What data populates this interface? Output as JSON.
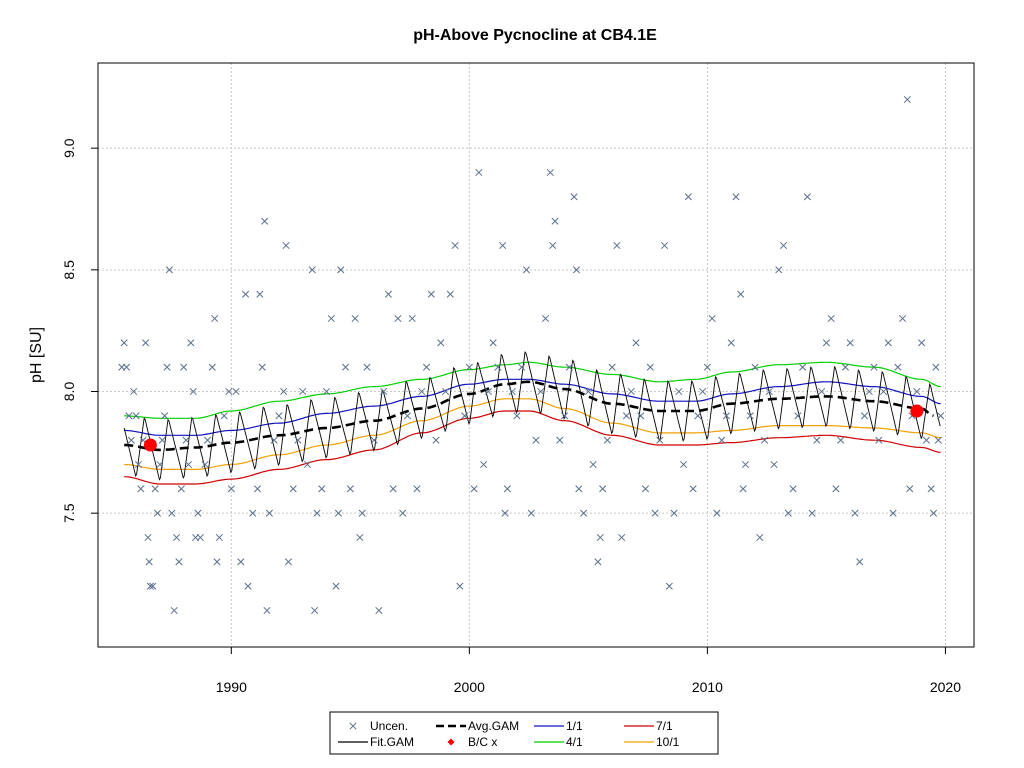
{
  "chart_data": {
    "type": "scatter",
    "title": "pH-Above Pycnocline at CB4.1E",
    "xlabel": "",
    "ylabel": "pH [SU]",
    "xlim": [
      1984.4,
      2021.2
    ],
    "ylim": [
      6.95,
      9.35
    ],
    "x_ticks": [
      1990,
      2000,
      2010,
      2020
    ],
    "x_tick_labels": [
      "1990",
      "2000",
      "2010",
      "2020"
    ],
    "y_ticks": [
      7.5,
      8.0,
      8.5,
      9.0
    ],
    "y_tick_labels": [
      "7.5",
      "8.0",
      "8.5",
      "9.0"
    ],
    "grid": true,
    "legend_position": "bottom-center",
    "colors": {
      "uncen": "#5a6f8c",
      "fit_gam": "#000000",
      "avg_gam": "#000000",
      "bc": "#ff0000",
      "s1_1": "#1010c0",
      "s4_1": "#00d000",
      "s7_1": "#d00000",
      "s10_1": "#f0a000"
    },
    "legend": [
      {
        "key": "uncen",
        "label": "Uncen."
      },
      {
        "key": "fit_gam",
        "label": "Fit.GAM"
      },
      {
        "key": "avg_gam",
        "label": "Avg.GAM"
      },
      {
        "key": "bc",
        "label": "B/C x"
      },
      {
        "key": "s1_1",
        "label": "1/1"
      },
      {
        "key": "s4_1",
        "label": "4/1"
      },
      {
        "key": "s7_1",
        "label": "7/1"
      },
      {
        "key": "s10_1",
        "label": "10/1"
      }
    ],
    "uncen_points": [
      [
        1985.4,
        8.1
      ],
      [
        1985.5,
        8.2
      ],
      [
        1985.6,
        8.1
      ],
      [
        1985.7,
        7.9
      ],
      [
        1985.8,
        7.8
      ],
      [
        1985.9,
        8.0
      ],
      [
        1986.0,
        7.9
      ],
      [
        1986.1,
        7.7
      ],
      [
        1986.2,
        7.6
      ],
      [
        1986.3,
        7.8
      ],
      [
        1986.4,
        8.2
      ],
      [
        1986.5,
        7.4
      ],
      [
        1986.55,
        7.3
      ],
      [
        1986.6,
        7.2
      ],
      [
        1986.7,
        7.2
      ],
      [
        1986.8,
        7.6
      ],
      [
        1986.9,
        7.5
      ],
      [
        1987.0,
        7.7
      ],
      [
        1987.1,
        7.8
      ],
      [
        1987.2,
        7.9
      ],
      [
        1987.3,
        8.1
      ],
      [
        1987.4,
        8.5
      ],
      [
        1987.5,
        7.5
      ],
      [
        1987.6,
        7.1
      ],
      [
        1987.7,
        7.4
      ],
      [
        1987.8,
        7.3
      ],
      [
        1987.9,
        7.6
      ],
      [
        1988.0,
        8.1
      ],
      [
        1988.1,
        7.8
      ],
      [
        1988.2,
        7.7
      ],
      [
        1988.3,
        8.2
      ],
      [
        1988.4,
        8.0
      ],
      [
        1988.5,
        7.4
      ],
      [
        1988.6,
        7.5
      ],
      [
        1988.7,
        7.4
      ],
      [
        1988.9,
        7.7
      ],
      [
        1989.0,
        7.8
      ],
      [
        1989.2,
        8.1
      ],
      [
        1989.3,
        8.3
      ],
      [
        1989.4,
        7.3
      ],
      [
        1989.5,
        7.4
      ],
      [
        1989.7,
        7.9
      ],
      [
        1989.9,
        8.0
      ],
      [
        1990.0,
        7.6
      ],
      [
        1990.2,
        8.0
      ],
      [
        1990.4,
        7.3
      ],
      [
        1990.6,
        8.4
      ],
      [
        1990.7,
        7.2
      ],
      [
        1990.9,
        7.5
      ],
      [
        1991.1,
        7.6
      ],
      [
        1991.2,
        8.4
      ],
      [
        1991.3,
        8.1
      ],
      [
        1991.4,
        8.7
      ],
      [
        1991.5,
        7.1
      ],
      [
        1991.6,
        7.5
      ],
      [
        1991.8,
        7.8
      ],
      [
        1992.0,
        7.9
      ],
      [
        1992.2,
        8.0
      ],
      [
        1992.3,
        8.6
      ],
      [
        1992.4,
        7.3
      ],
      [
        1992.6,
        7.6
      ],
      [
        1992.8,
        7.8
      ],
      [
        1993.0,
        8.0
      ],
      [
        1993.2,
        7.7
      ],
      [
        1993.4,
        8.5
      ],
      [
        1993.5,
        7.1
      ],
      [
        1993.6,
        7.5
      ],
      [
        1993.8,
        7.6
      ],
      [
        1994.0,
        8.0
      ],
      [
        1994.2,
        8.3
      ],
      [
        1994.4,
        7.2
      ],
      [
        1994.5,
        7.5
      ],
      [
        1994.6,
        8.5
      ],
      [
        1994.8,
        8.1
      ],
      [
        1995.0,
        7.6
      ],
      [
        1995.2,
        8.3
      ],
      [
        1995.4,
        7.4
      ],
      [
        1995.5,
        7.5
      ],
      [
        1995.7,
        8.1
      ],
      [
        1996.0,
        7.8
      ],
      [
        1996.2,
        7.1
      ],
      [
        1996.4,
        8.0
      ],
      [
        1996.6,
        8.4
      ],
      [
        1996.8,
        7.6
      ],
      [
        1997.0,
        8.3
      ],
      [
        1997.2,
        7.5
      ],
      [
        1997.4,
        7.9
      ],
      [
        1997.6,
        8.3
      ],
      [
        1997.8,
        7.6
      ],
      [
        1998.0,
        8.0
      ],
      [
        1998.2,
        8.1
      ],
      [
        1998.4,
        8.4
      ],
      [
        1998.6,
        7.8
      ],
      [
        1998.8,
        8.2
      ],
      [
        1999.0,
        8.0
      ],
      [
        1999.2,
        8.4
      ],
      [
        1999.4,
        8.6
      ],
      [
        1999.6,
        7.2
      ],
      [
        1999.8,
        7.9
      ],
      [
        2000.0,
        8.1
      ],
      [
        2000.2,
        7.6
      ],
      [
        2000.4,
        8.9
      ],
      [
        2000.6,
        7.7
      ],
      [
        2000.8,
        8.0
      ],
      [
        2001.0,
        8.2
      ],
      [
        2001.2,
        8.1
      ],
      [
        2001.4,
        8.6
      ],
      [
        2001.5,
        7.5
      ],
      [
        2001.6,
        7.6
      ],
      [
        2001.8,
        8.0
      ],
      [
        2002.0,
        7.9
      ],
      [
        2002.2,
        8.1
      ],
      [
        2002.4,
        8.5
      ],
      [
        2002.6,
        7.5
      ],
      [
        2002.8,
        7.8
      ],
      [
        2003.0,
        8.0
      ],
      [
        2003.2,
        8.3
      ],
      [
        2003.4,
        8.9
      ],
      [
        2003.5,
        8.6
      ],
      [
        2003.6,
        8.7
      ],
      [
        2003.8,
        7.8
      ],
      [
        2004.0,
        7.9
      ],
      [
        2004.2,
        8.1
      ],
      [
        2004.4,
        8.8
      ],
      [
        2004.5,
        8.5
      ],
      [
        2004.6,
        7.6
      ],
      [
        2004.8,
        7.5
      ],
      [
        2005.0,
        8.0
      ],
      [
        2005.2,
        7.7
      ],
      [
        2005.4,
        7.3
      ],
      [
        2005.5,
        7.4
      ],
      [
        2005.6,
        7.6
      ],
      [
        2005.8,
        7.8
      ],
      [
        2006.0,
        8.1
      ],
      [
        2006.2,
        8.6
      ],
      [
        2006.4,
        7.4
      ],
      [
        2006.6,
        7.9
      ],
      [
        2006.8,
        8.0
      ],
      [
        2007.0,
        8.2
      ],
      [
        2007.2,
        7.9
      ],
      [
        2007.4,
        7.6
      ],
      [
        2007.6,
        8.1
      ],
      [
        2007.8,
        7.5
      ],
      [
        2008.0,
        7.8
      ],
      [
        2008.2,
        8.6
      ],
      [
        2008.4,
        7.2
      ],
      [
        2008.6,
        7.5
      ],
      [
        2008.8,
        8.0
      ],
      [
        2009.0,
        7.7
      ],
      [
        2009.2,
        8.8
      ],
      [
        2009.4,
        7.6
      ],
      [
        2009.6,
        7.9
      ],
      [
        2009.8,
        8.0
      ],
      [
        2010.0,
        8.1
      ],
      [
        2010.2,
        8.3
      ],
      [
        2010.4,
        7.5
      ],
      [
        2010.6,
        7.8
      ],
      [
        2010.8,
        7.9
      ],
      [
        2011.0,
        8.2
      ],
      [
        2011.2,
        8.8
      ],
      [
        2011.4,
        8.4
      ],
      [
        2011.5,
        7.6
      ],
      [
        2011.6,
        7.7
      ],
      [
        2011.8,
        7.9
      ],
      [
        2012.0,
        8.1
      ],
      [
        2012.2,
        7.4
      ],
      [
        2012.4,
        7.8
      ],
      [
        2012.6,
        8.0
      ],
      [
        2012.8,
        7.7
      ],
      [
        2013.0,
        8.5
      ],
      [
        2013.2,
        8.6
      ],
      [
        2013.4,
        7.5
      ],
      [
        2013.6,
        7.6
      ],
      [
        2013.8,
        7.9
      ],
      [
        2014.0,
        8.1
      ],
      [
        2014.2,
        8.8
      ],
      [
        2014.4,
        7.5
      ],
      [
        2014.6,
        7.8
      ],
      [
        2014.8,
        8.0
      ],
      [
        2015.0,
        8.2
      ],
      [
        2015.2,
        8.3
      ],
      [
        2015.4,
        7.6
      ],
      [
        2015.6,
        7.8
      ],
      [
        2015.8,
        8.1
      ],
      [
        2016.0,
        8.2
      ],
      [
        2016.2,
        7.5
      ],
      [
        2016.4,
        7.3
      ],
      [
        2016.6,
        7.9
      ],
      [
        2016.8,
        8.0
      ],
      [
        2017.0,
        8.1
      ],
      [
        2017.2,
        7.8
      ],
      [
        2017.4,
        8.0
      ],
      [
        2017.6,
        8.2
      ],
      [
        2017.8,
        7.5
      ],
      [
        2018.0,
        8.1
      ],
      [
        2018.2,
        8.3
      ],
      [
        2018.4,
        9.2
      ],
      [
        2018.5,
        7.6
      ],
      [
        2018.6,
        7.9
      ],
      [
        2018.8,
        8.0
      ],
      [
        2019.0,
        8.2
      ],
      [
        2019.2,
        7.8
      ],
      [
        2019.4,
        7.6
      ],
      [
        2019.5,
        7.5
      ],
      [
        2019.6,
        8.1
      ],
      [
        2019.7,
        7.8
      ],
      [
        2019.8,
        7.9
      ]
    ],
    "bc_points": [
      [
        1986.6,
        7.78
      ],
      [
        2018.8,
        7.92
      ]
    ],
    "avg_gam": {
      "x": [
        1985.5,
        1987,
        1988.5,
        1990,
        1992,
        1994,
        1996,
        1998,
        2000,
        2001.5,
        2002.5,
        2004,
        2006,
        2008,
        2009.5,
        2011,
        2013,
        2015,
        2017,
        2019,
        2019.5
      ],
      "y": [
        7.78,
        7.76,
        7.77,
        7.79,
        7.82,
        7.85,
        7.88,
        7.93,
        7.99,
        8.03,
        8.04,
        8.01,
        7.95,
        7.92,
        7.92,
        7.95,
        7.97,
        7.98,
        7.96,
        7.93,
        7.9
      ]
    },
    "band_1_1": {
      "x": [
        1985.5,
        1987,
        1988.5,
        1990,
        1992,
        1994,
        1996,
        1998,
        2000,
        2001.5,
        2002.5,
        2004,
        2006,
        2008,
        2009.5,
        2011,
        2013,
        2015,
        2017,
        2019,
        2019.8
      ],
      "y": [
        7.84,
        7.82,
        7.82,
        7.84,
        7.87,
        7.91,
        7.94,
        7.98,
        8.03,
        8.05,
        8.05,
        8.03,
        7.99,
        7.96,
        7.96,
        7.99,
        8.02,
        8.04,
        8.02,
        7.98,
        7.95
      ]
    },
    "band_4_1": {
      "x": [
        1985.5,
        1987,
        1988.5,
        1990,
        1992,
        1994,
        1996,
        1998,
        2000,
        2001.5,
        2002.5,
        2004,
        2006,
        2008,
        2009.5,
        2011,
        2013,
        2015,
        2017,
        2019,
        2019.8
      ],
      "y": [
        7.9,
        7.89,
        7.89,
        7.92,
        7.96,
        7.99,
        8.02,
        8.05,
        8.09,
        8.11,
        8.12,
        8.1,
        8.07,
        8.04,
        8.05,
        8.08,
        8.11,
        8.12,
        8.1,
        8.05,
        8.02
      ]
    },
    "band_7_1": {
      "x": [
        1985.5,
        1987,
        1988.5,
        1990,
        1992,
        1994,
        1996,
        1998,
        2000,
        2001.5,
        2002.5,
        2004,
        2006,
        2008,
        2009.5,
        2011,
        2013,
        2015,
        2017,
        2019,
        2019.8
      ],
      "y": [
        7.65,
        7.62,
        7.62,
        7.64,
        7.68,
        7.72,
        7.76,
        7.83,
        7.89,
        7.92,
        7.92,
        7.88,
        7.82,
        7.78,
        7.78,
        7.79,
        7.81,
        7.82,
        7.8,
        7.77,
        7.75
      ]
    },
    "band_10_1": {
      "x": [
        1985.5,
        1987,
        1988.5,
        1990,
        1992,
        1994,
        1996,
        1998,
        2000,
        2001.5,
        2002.5,
        2004,
        2006,
        2008,
        2009.5,
        2011,
        2013,
        2015,
        2017,
        2019,
        2019.8
      ],
      "y": [
        7.7,
        7.68,
        7.68,
        7.7,
        7.74,
        7.78,
        7.82,
        7.88,
        7.94,
        7.97,
        7.97,
        7.93,
        7.87,
        7.83,
        7.83,
        7.84,
        7.86,
        7.86,
        7.85,
        7.83,
        7.81
      ]
    },
    "fit_gam_seasonal_amplitude": 0.13
  }
}
